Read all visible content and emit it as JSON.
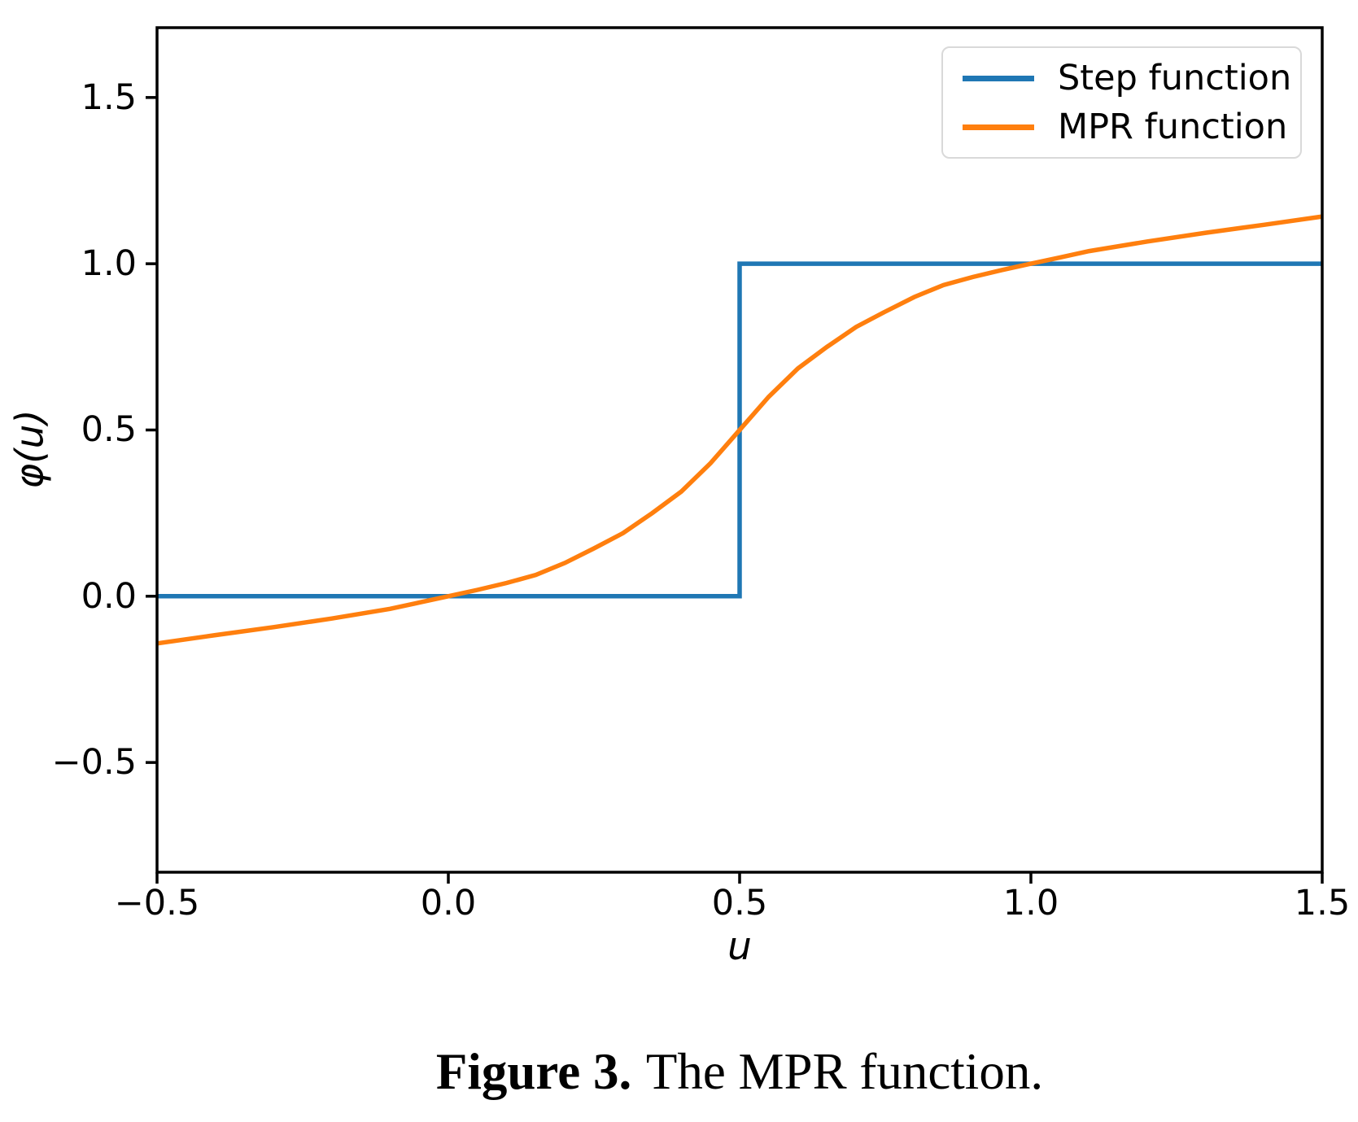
{
  "figure": {
    "caption": {
      "label": "Figure 3.",
      "text": "The MPR function."
    }
  },
  "chart_data": {
    "type": "line",
    "title": "",
    "xlabel": "u",
    "ylabel": "φ(u)",
    "xlim": [
      -0.5,
      1.5
    ],
    "ylim": [
      -0.83,
      1.71
    ],
    "grid": false,
    "background": "#ffffff",
    "axis_color": "#000000",
    "xticks": {
      "values": [
        -0.5,
        0.0,
        0.5,
        1.0,
        1.5
      ],
      "labels": [
        "−0.5",
        "0.0",
        "0.5",
        "1.0",
        "1.5"
      ]
    },
    "yticks": {
      "values": [
        1.5,
        1.0,
        0.5,
        0.0,
        -0.5
      ],
      "labels": [
        "1.5",
        "1.0",
        "0.5",
        "0.0",
        "−0.5"
      ]
    },
    "legend": {
      "position": "upper right",
      "border_color": "#d9d9d9",
      "background": "#ffffff"
    },
    "series": [
      {
        "name": "Step function",
        "color": "#1f77b4",
        "points": [
          [
            -0.5,
            0.0
          ],
          [
            0.5,
            0.0
          ],
          [
            0.5,
            1.0
          ],
          [
            1.5,
            1.0
          ]
        ]
      },
      {
        "name": "MPR function",
        "color": "#ff7f0e",
        "points": [
          [
            -0.5,
            -0.142
          ],
          [
            -0.4,
            -0.117
          ],
          [
            -0.3,
            -0.093
          ],
          [
            -0.2,
            -0.067
          ],
          [
            -0.1,
            -0.038
          ],
          [
            -0.05,
            -0.019
          ],
          [
            0.0,
            0.0
          ],
          [
            0.05,
            0.019
          ],
          [
            0.1,
            0.04
          ],
          [
            0.15,
            0.064
          ],
          [
            0.2,
            0.1
          ],
          [
            0.25,
            0.144
          ],
          [
            0.3,
            0.19
          ],
          [
            0.35,
            0.25
          ],
          [
            0.4,
            0.315
          ],
          [
            0.45,
            0.4
          ],
          [
            0.5,
            0.5
          ],
          [
            0.55,
            0.6
          ],
          [
            0.6,
            0.685
          ],
          [
            0.65,
            0.75
          ],
          [
            0.7,
            0.81
          ],
          [
            0.75,
            0.856
          ],
          [
            0.8,
            0.9
          ],
          [
            0.85,
            0.936
          ],
          [
            0.9,
            0.96
          ],
          [
            0.95,
            0.981
          ],
          [
            1.0,
            1.0
          ],
          [
            1.05,
            1.019
          ],
          [
            1.1,
            1.038
          ],
          [
            1.2,
            1.067
          ],
          [
            1.3,
            1.093
          ],
          [
            1.4,
            1.117
          ],
          [
            1.5,
            1.142
          ]
        ]
      }
    ]
  }
}
